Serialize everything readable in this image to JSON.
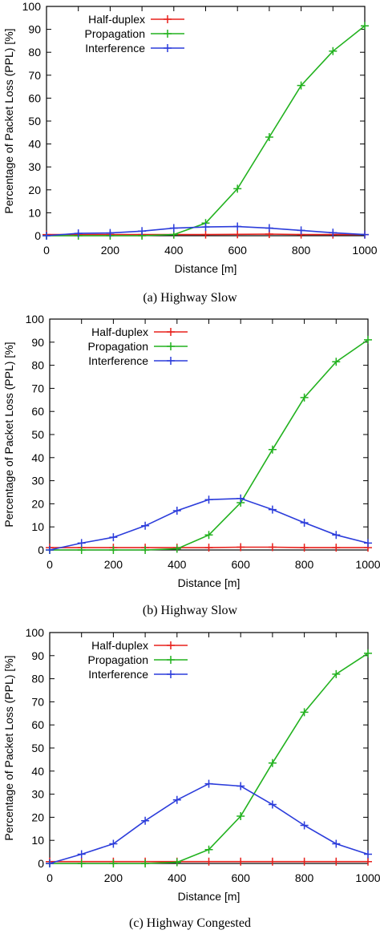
{
  "colors": {
    "half_duplex": "#e8211c",
    "propagation": "#22b21f",
    "interference": "#2c3ddb",
    "axis": "#000000"
  },
  "chart_data": [
    {
      "type": "line",
      "caption": "(a) Highway Slow",
      "xlabel": "Distance [m]",
      "ylabel": "Percentage of Packet Loss (PPL) [%]",
      "xlim": [
        0,
        1000
      ],
      "ylim": [
        0,
        100
      ],
      "xticks": [
        0,
        200,
        400,
        600,
        800,
        1000
      ],
      "yticks": [
        0,
        10,
        20,
        30,
        40,
        50,
        60,
        70,
        80,
        90,
        100
      ],
      "grid": false,
      "legend": "top-left",
      "x": [
        0,
        100,
        200,
        300,
        400,
        500,
        600,
        700,
        800,
        900,
        1000
      ],
      "series": [
        {
          "name": "Half-duplex",
          "values": [
            0.5,
            0.5,
            0.5,
            0.5,
            0.5,
            0.5,
            0.6,
            0.7,
            0.5,
            0.5,
            0.5
          ]
        },
        {
          "name": "Propagation",
          "values": [
            0,
            0,
            0,
            0,
            0.5,
            5.5,
            20.5,
            43,
            65.5,
            80.5,
            91.5
          ]
        },
        {
          "name": "Interference",
          "values": [
            0,
            1,
            1.2,
            2,
            3.3,
            3.8,
            4,
            3.3,
            2.3,
            1.3,
            0.5
          ]
        }
      ]
    },
    {
      "type": "line",
      "caption": "(b) Highway Slow",
      "xlabel": "Distance [m]",
      "ylabel": "Percentage of Packet Loss (PPL) [%]",
      "xlim": [
        0,
        1000
      ],
      "ylim": [
        0,
        100
      ],
      "xticks": [
        0,
        200,
        400,
        600,
        800,
        1000
      ],
      "yticks": [
        0,
        10,
        20,
        30,
        40,
        50,
        60,
        70,
        80,
        90,
        100
      ],
      "grid": false,
      "legend": "top-left",
      "x": [
        0,
        100,
        200,
        300,
        400,
        500,
        600,
        700,
        800,
        900,
        1000
      ],
      "series": [
        {
          "name": "Half-duplex",
          "values": [
            1,
            1,
            1,
            1,
            1,
            1,
            1.2,
            1.2,
            1,
            1,
            1
          ]
        },
        {
          "name": "Propagation",
          "values": [
            0,
            0,
            0,
            0,
            0.5,
            6.5,
            20.5,
            43.5,
            66,
            81.5,
            91
          ]
        },
        {
          "name": "Interference",
          "values": [
            0,
            3,
            5.5,
            10.5,
            17,
            21.8,
            22.3,
            17.5,
            11.8,
            6.5,
            3
          ]
        }
      ]
    },
    {
      "type": "line",
      "caption": "(c) Highway Congested",
      "xlabel": "Distance [m]",
      "ylabel": "Percentage of Packet Loss (PPL) [%]",
      "xlim": [
        0,
        1000
      ],
      "ylim": [
        0,
        100
      ],
      "xticks": [
        0,
        200,
        400,
        600,
        800,
        1000
      ],
      "yticks": [
        0,
        10,
        20,
        30,
        40,
        50,
        60,
        70,
        80,
        90,
        100
      ],
      "grid": false,
      "legend": "top-left",
      "x": [
        0,
        100,
        200,
        300,
        400,
        500,
        600,
        700,
        800,
        900,
        1000
      ],
      "series": [
        {
          "name": "Half-duplex",
          "values": [
            0.8,
            0.8,
            0.8,
            0.8,
            0.8,
            0.8,
            0.8,
            0.8,
            0.8,
            0.8,
            0.8
          ]
        },
        {
          "name": "Propagation",
          "values": [
            0,
            0,
            0,
            0,
            0.5,
            6,
            20.5,
            43.5,
            65.5,
            82,
            91
          ]
        },
        {
          "name": "Interference",
          "values": [
            0,
            4,
            8.5,
            18.5,
            27.5,
            34.5,
            33.5,
            25.5,
            16.5,
            8.5,
            4
          ]
        }
      ]
    }
  ]
}
